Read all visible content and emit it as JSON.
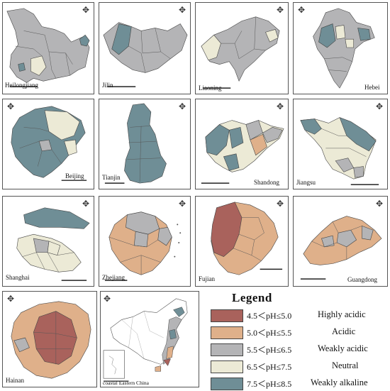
{
  "panels": {
    "heilongjiang": {
      "name": "Heilongjiang"
    },
    "jilin": {
      "name": "Jilin"
    },
    "liaoning": {
      "name": "Liaoning"
    },
    "hebei": {
      "name": "Hebei"
    },
    "beijing": {
      "name": "Beijing"
    },
    "tianjin": {
      "name": "Tianjin"
    },
    "shandong": {
      "name": "Shandong"
    },
    "jiangsu": {
      "name": "Jiangsu"
    },
    "shanghai": {
      "name": "Shanghai"
    },
    "zhejiang": {
      "name": "Zhejiang"
    },
    "fujian": {
      "name": "Fujian"
    },
    "guangdong": {
      "name": "Guangdong"
    },
    "hainan": {
      "name": "Hainan"
    },
    "china": {
      "name": "coastal Eastern China"
    }
  },
  "legend": {
    "title": "Legend",
    "items": [
      {
        "range": "4.5＜pH≤5.0",
        "class": "Highly acidic",
        "color": "#a9625c"
      },
      {
        "range": "5.0＜pH≤5.5",
        "class": "Acidic",
        "color": "#dfb08a"
      },
      {
        "range": "5.5＜pH≤6.5",
        "class": "Weakly acidic",
        "color": "#b4b4b6"
      },
      {
        "range": "6.5＜pH≤7.5",
        "class": "Neutral",
        "color": "#ecead6"
      },
      {
        "range": "7.5＜pH≤8.5",
        "class": "Weakly alkaline",
        "color": "#6f8e96"
      }
    ]
  },
  "colors": {
    "highly_acidic": "#a9625c",
    "acidic": "#dfb08a",
    "weakly_acidic": "#b4b4b6",
    "neutral": "#ecead6",
    "weakly_alkaline": "#6f8e96"
  },
  "icons": {
    "north_arrow": "compass-rose-icon",
    "scale": "scale-bar-icon"
  }
}
